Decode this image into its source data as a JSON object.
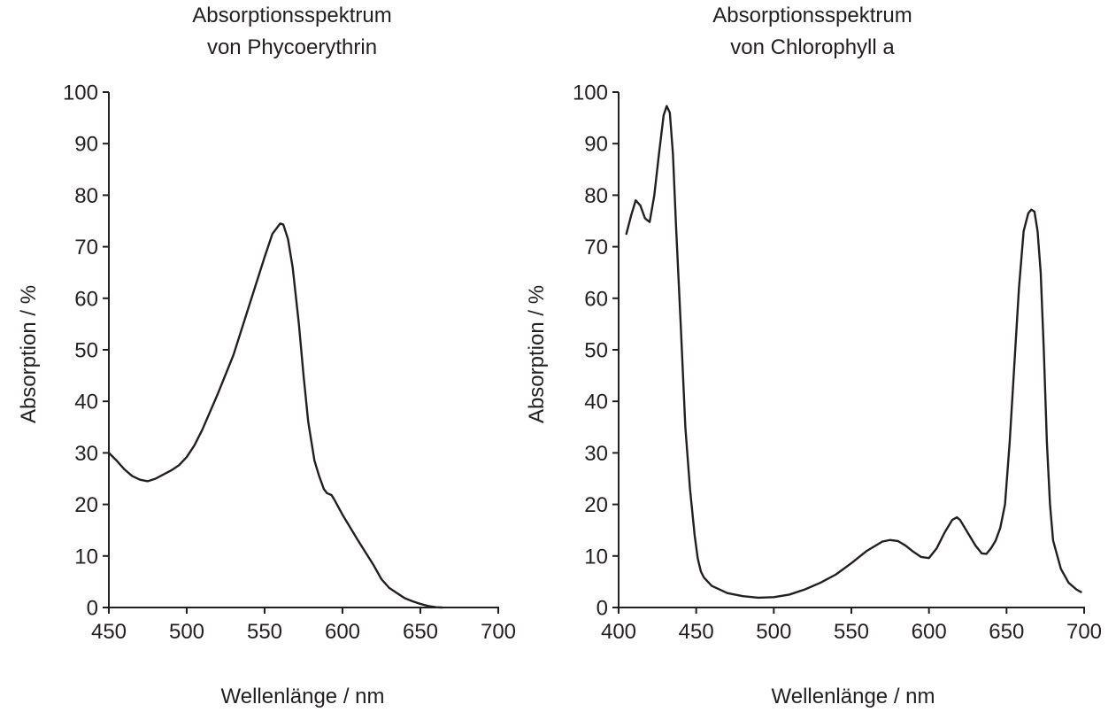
{
  "colors": {
    "ink": "#231f20",
    "background": "#ffffff"
  },
  "chart_data": [
    {
      "type": "line",
      "title_line1": "Absorptionsspektrum",
      "title_line2": "von Phycoerythrin",
      "xlabel": "Wellenlänge / nm",
      "ylabel": "Absorption / %",
      "xlim": [
        450,
        700
      ],
      "ylim": [
        0,
        100
      ],
      "xticks": [
        450,
        500,
        550,
        600,
        650,
        700
      ],
      "yticks": [
        0,
        10,
        20,
        30,
        40,
        50,
        60,
        70,
        80,
        90,
        100
      ],
      "grid": false,
      "series": [
        {
          "x": [
            450,
            455,
            460,
            465,
            470,
            475,
            480,
            485,
            490,
            495,
            500,
            505,
            510,
            520,
            530,
            540,
            550,
            555,
            560,
            562,
            565,
            568,
            572,
            575,
            578,
            582,
            585,
            588,
            590,
            593,
            595,
            600,
            610,
            620,
            625,
            630,
            635,
            640,
            645,
            650,
            655,
            660,
            664
          ],
          "y": [
            30,
            28.5,
            26.8,
            25.5,
            24.8,
            24.5,
            25.0,
            25.8,
            26.6,
            27.6,
            29.2,
            31.5,
            34.5,
            41.5,
            49,
            58.5,
            68,
            72.5,
            74.5,
            74.3,
            71.5,
            66,
            55,
            45,
            36,
            28.5,
            25.5,
            23,
            22.2,
            21.8,
            20.8,
            18,
            13,
            8.2,
            5.5,
            3.8,
            2.8,
            1.8,
            1.2,
            0.7,
            0.3,
            0.05,
            0
          ]
        }
      ]
    },
    {
      "type": "line",
      "title_line1": "Absorptionsspektrum",
      "title_line2": "von Chlorophyll a",
      "xlabel": "Wellenlänge / nm",
      "ylabel": "Absorption / %",
      "xlim": [
        400,
        700
      ],
      "ylim": [
        0,
        100
      ],
      "xticks": [
        400,
        450,
        500,
        550,
        600,
        650,
        700
      ],
      "yticks": [
        0,
        10,
        20,
        30,
        40,
        50,
        60,
        70,
        80,
        90,
        100
      ],
      "grid": false,
      "series": [
        {
          "x": [
            405,
            408,
            411,
            414,
            417,
            420,
            423,
            426,
            429,
            431,
            433,
            435,
            437,
            440,
            443,
            446,
            449,
            451,
            453,
            455,
            460,
            470,
            480,
            490,
            500,
            510,
            520,
            530,
            540,
            550,
            560,
            570,
            575,
            580,
            585,
            590,
            595,
            600,
            605,
            610,
            615,
            618,
            620,
            623,
            626,
            630,
            634,
            637,
            640,
            643,
            646,
            649,
            652,
            655,
            658,
            661,
            664,
            666,
            668,
            670,
            672,
            674,
            676,
            678,
            680,
            685,
            690,
            695,
            698
          ],
          "y": [
            72.5,
            76,
            79,
            78,
            75.5,
            74.8,
            80,
            88,
            95.5,
            97.3,
            96,
            88,
            74,
            55,
            35,
            23,
            14,
            9.5,
            7,
            5.8,
            4.2,
            2.8,
            2.2,
            1.9,
            2.0,
            2.5,
            3.5,
            4.8,
            6.4,
            8.6,
            11,
            12.8,
            13.1,
            12.9,
            12,
            10.8,
            9.8,
            9.6,
            11.5,
            14.5,
            17,
            17.5,
            17,
            15.5,
            14,
            12,
            10.5,
            10.4,
            11.5,
            13,
            15.5,
            20,
            32,
            47,
            62,
            73,
            76.5,
            77.2,
            76.8,
            73,
            65,
            50,
            32,
            20,
            13,
            7.5,
            4.8,
            3.5,
            3.0
          ]
        }
      ]
    }
  ]
}
